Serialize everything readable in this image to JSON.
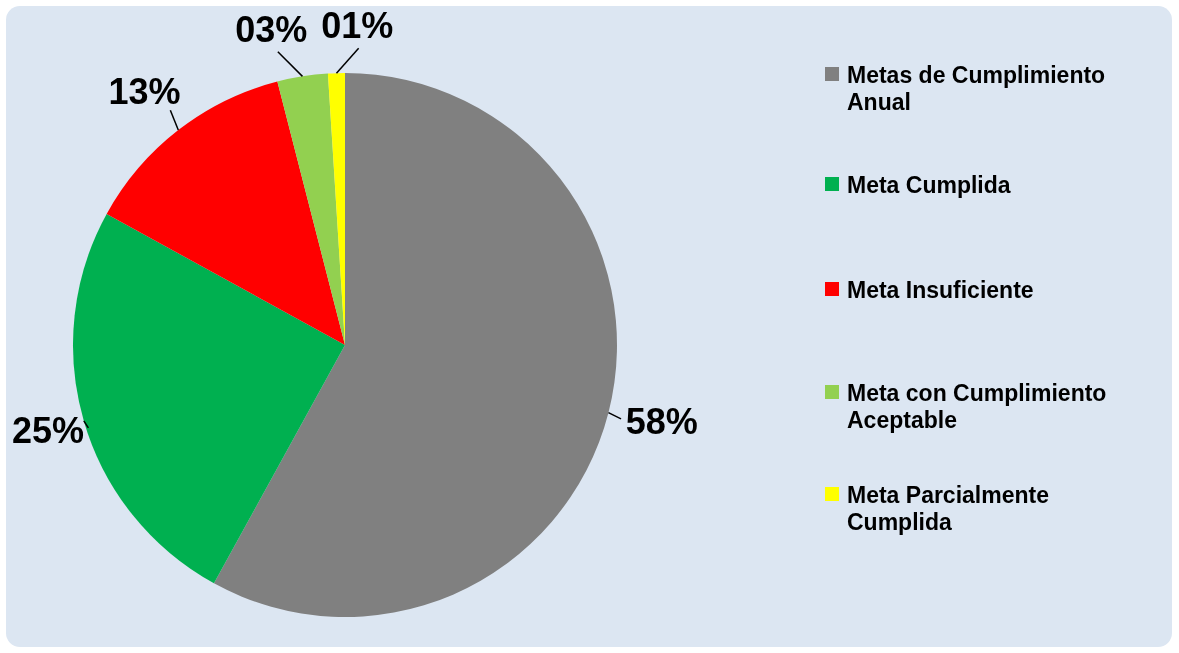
{
  "chart_data": {
    "type": "pie",
    "categories": [
      "Metas de Cumplimiento Anual",
      "Meta Cumplida",
      "Meta Insuficiente",
      "Meta con Cumplimiento Aceptable",
      "Meta Parcialmente Cumplida"
    ],
    "values": [
      58,
      25,
      13,
      3,
      1
    ],
    "colors": [
      "#808080",
      "#00b050",
      "#ff0000",
      "#92d050",
      "#ffff00"
    ],
    "value_labels": [
      "58%",
      "25%",
      "13%",
      "03%",
      "01%"
    ],
    "legend": "right"
  }
}
